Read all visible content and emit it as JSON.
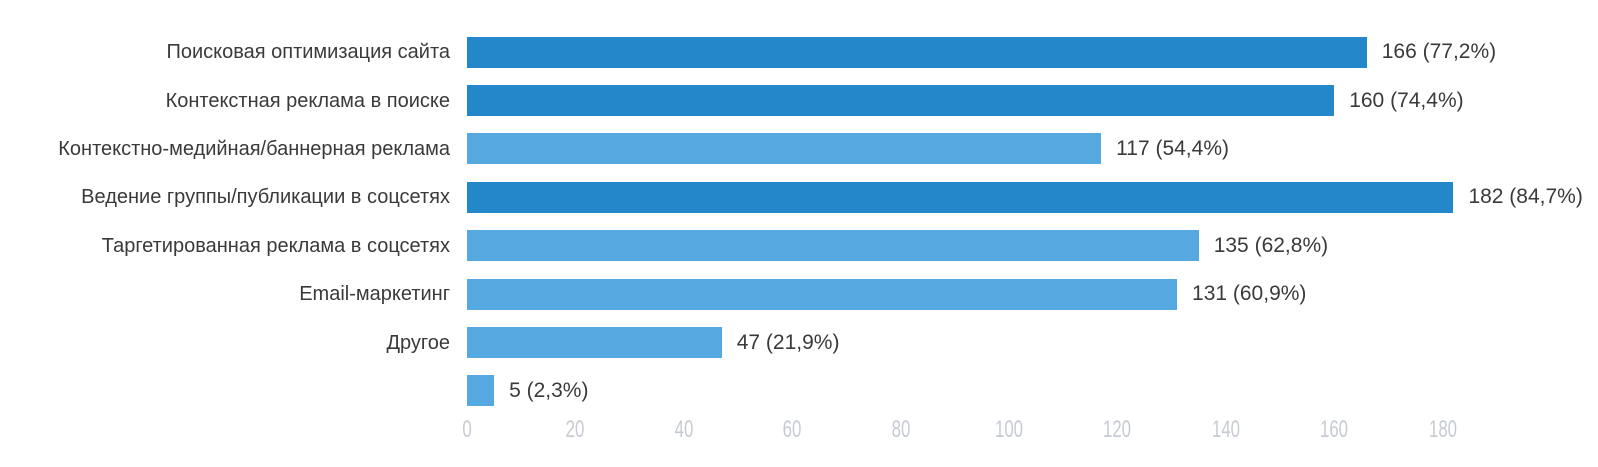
{
  "chart_data": {
    "type": "bar",
    "orientation": "horizontal",
    "grid": false,
    "legend": false,
    "rows": [
      {
        "label": "Поисковая оптимизация сайта",
        "value": 166,
        "percent": "77,2%",
        "value_label": "166 (77,2%)",
        "emphasis": true
      },
      {
        "label": "Контекстная реклама в поиске",
        "value": 160,
        "percent": "74,4%",
        "value_label": "160 (74,4%)",
        "emphasis": true
      },
      {
        "label": "Контекстно-медийная/баннерная реклама",
        "value": 117,
        "percent": "54,4%",
        "value_label": "117 (54,4%)",
        "emphasis": false
      },
      {
        "label": "Ведение группы/публикации в соцсетях",
        "value": 182,
        "percent": "84,7%",
        "value_label": "182 (84,7%)",
        "emphasis": true
      },
      {
        "label": "Таргетированная реклама в соцсетях",
        "value": 135,
        "percent": "62,8%",
        "value_label": "135 (62,8%)",
        "emphasis": false
      },
      {
        "label": "Email-маркетинг",
        "value": 131,
        "percent": "60,9%",
        "value_label": "131 (60,9%)",
        "emphasis": false
      },
      {
        "label": "Другое",
        "value": 47,
        "percent": "21,9%",
        "value_label": "47 (21,9%)",
        "emphasis": false
      },
      {
        "label": "",
        "value": 5,
        "percent": "2,3%",
        "value_label": "5 (2,3%)",
        "emphasis": false
      }
    ],
    "x_ticks": [
      0,
      20,
      40,
      60,
      80,
      100,
      120,
      140,
      160,
      180
    ],
    "xlim": [
      0,
      184.5
    ],
    "colors": {
      "bar_dark": "#2487c9",
      "bar_light": "#56a8e0",
      "label_text": "#3a3a3a",
      "tick_text": "#c6cbd3"
    }
  }
}
